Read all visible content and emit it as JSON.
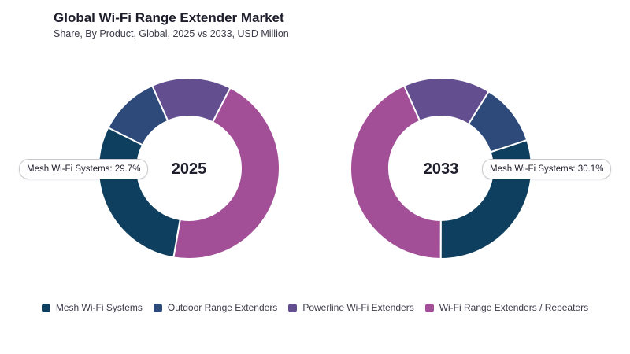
{
  "header": {
    "title": "Global Wi-Fi Range Extender Market",
    "subtitle": "Share, By Product, Global, 2025 vs 2033, USD Million"
  },
  "chart_data": {
    "type": "donut",
    "categories": [
      "Mesh Wi-Fi Systems",
      "Outdoor Range Extenders",
      "Powerline Wi-Fi Extenders",
      "Wi-Fi Range Extenders / Repeaters"
    ],
    "colors": [
      "#0e3f5e",
      "#2e4a7a",
      "#634e90",
      "#a24f97"
    ],
    "series": [
      {
        "name": "2025",
        "values": [
          29.7,
          10.9,
          14.2,
          45.2
        ]
      },
      {
        "name": "2033",
        "values": [
          30.1,
          11.1,
          15.5,
          43.3
        ]
      }
    ],
    "callouts": [
      {
        "text": "Mesh Wi-Fi Systems: 29.7%"
      },
      {
        "text": "Mesh Wi-Fi Systems: 30.1%"
      }
    ],
    "legend": {
      "position": "bottom"
    }
  }
}
